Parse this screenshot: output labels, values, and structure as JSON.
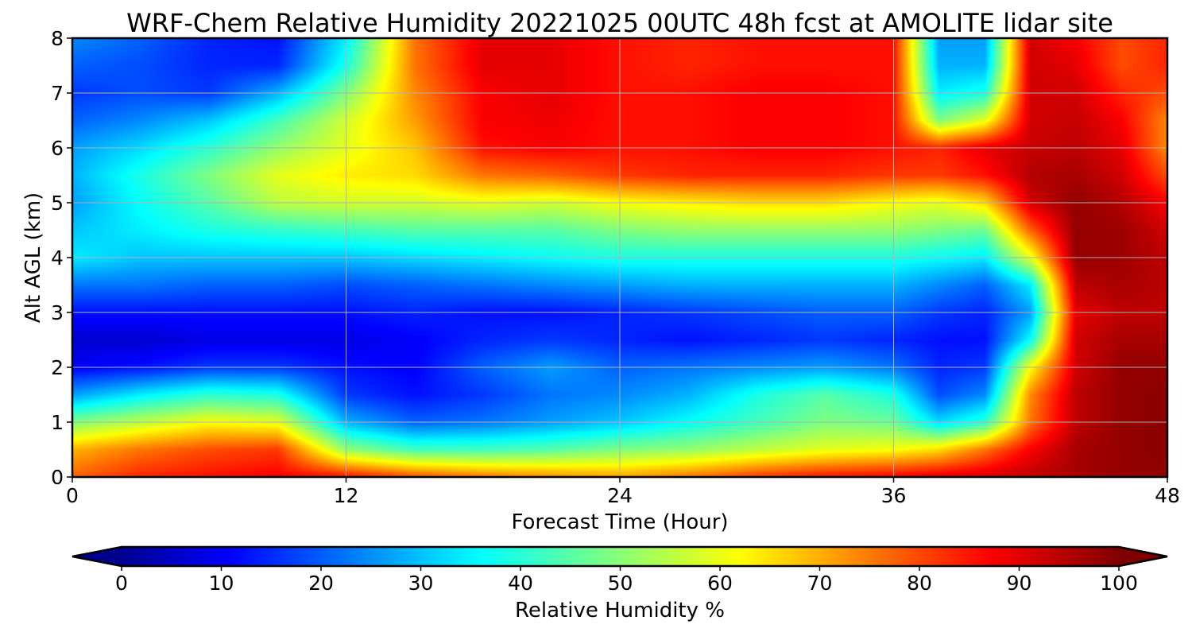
{
  "chart_data": {
    "type": "heatmap",
    "title": "WRF-Chem Relative Humidity 20221025 00UTC 48h fcst at AMOLITE lidar site",
    "xlabel": "Forecast Time (Hour)",
    "ylabel": "Alt AGL (km)",
    "xlim": [
      0,
      48
    ],
    "ylim": [
      0,
      8
    ],
    "xticks": [
      "0",
      "12",
      "24",
      "36",
      "48"
    ],
    "yticks": [
      "0",
      "1",
      "2",
      "3",
      "4",
      "5",
      "6",
      "7",
      "8"
    ],
    "grid": true,
    "colormap": "jet",
    "colorbar": {
      "label": "Relative Humidity %",
      "range": [
        0,
        100
      ],
      "ticks": [
        "0",
        "10",
        "20",
        "30",
        "40",
        "50",
        "60",
        "70",
        "80",
        "90",
        "100"
      ],
      "extend": "both",
      "orientation": "horizontal"
    },
    "x": [
      0,
      3,
      6,
      9,
      12,
      15,
      18,
      21,
      24,
      27,
      30,
      33,
      36,
      38,
      40,
      42,
      44,
      46,
      48
    ],
    "y": [
      0,
      0.5,
      1,
      1.5,
      2,
      2.5,
      3,
      3.5,
      4,
      4.5,
      5,
      5.5,
      6,
      6.5,
      7,
      7.5,
      8
    ],
    "z": [
      [
        78,
        84,
        86,
        88,
        86,
        80,
        76,
        74,
        72,
        76,
        82,
        86,
        88,
        90,
        92,
        94,
        96,
        98,
        98
      ],
      [
        70,
        76,
        80,
        82,
        52,
        44,
        44,
        46,
        50,
        52,
        56,
        60,
        62,
        66,
        76,
        88,
        96,
        98,
        99
      ],
      [
        50,
        56,
        62,
        60,
        30,
        22,
        24,
        28,
        32,
        38,
        44,
        50,
        48,
        34,
        42,
        76,
        94,
        98,
        99
      ],
      [
        28,
        36,
        42,
        40,
        18,
        14,
        18,
        24,
        26,
        30,
        40,
        46,
        40,
        20,
        26,
        74,
        94,
        98,
        99
      ],
      [
        12,
        14,
        18,
        18,
        14,
        12,
        22,
        28,
        22,
        24,
        26,
        28,
        24,
        16,
        18,
        62,
        92,
        98,
        98
      ],
      [
        8,
        8,
        10,
        10,
        10,
        12,
        16,
        18,
        16,
        14,
        16,
        18,
        16,
        14,
        14,
        38,
        92,
        96,
        96
      ],
      [
        14,
        14,
        14,
        14,
        14,
        16,
        14,
        14,
        16,
        18,
        20,
        22,
        22,
        18,
        16,
        28,
        90,
        94,
        94
      ],
      [
        24,
        24,
        22,
        22,
        20,
        22,
        24,
        26,
        28,
        30,
        30,
        30,
        30,
        26,
        22,
        36,
        94,
        96,
        94
      ],
      [
        36,
        32,
        32,
        32,
        32,
        34,
        36,
        38,
        40,
        40,
        40,
        40,
        40,
        38,
        36,
        60,
        98,
        97,
        94
      ],
      [
        32,
        36,
        40,
        42,
        44,
        46,
        46,
        46,
        50,
        52,
        52,
        52,
        52,
        50,
        48,
        78,
        98,
        97,
        92
      ],
      [
        28,
        38,
        46,
        56,
        58,
        58,
        60,
        58,
        62,
        64,
        66,
        66,
        62,
        60,
        66,
        92,
        98,
        95,
        88
      ],
      [
        30,
        40,
        50,
        60,
        64,
        66,
        76,
        78,
        82,
        84,
        84,
        84,
        82,
        82,
        86,
        95,
        96,
        92,
        80
      ],
      [
        28,
        34,
        42,
        52,
        60,
        68,
        86,
        88,
        86,
        86,
        88,
        88,
        86,
        84,
        90,
        93,
        94,
        90,
        74
      ],
      [
        22,
        26,
        32,
        44,
        58,
        72,
        88,
        89,
        86,
        86,
        88,
        88,
        86,
        50,
        60,
        92,
        93,
        88,
        74
      ],
      [
        18,
        20,
        18,
        30,
        50,
        74,
        88,
        90,
        86,
        86,
        88,
        88,
        86,
        36,
        40,
        92,
        92,
        84,
        80
      ],
      [
        22,
        20,
        16,
        16,
        40,
        76,
        90,
        90,
        86,
        84,
        86,
        86,
        86,
        30,
        30,
        92,
        90,
        80,
        84
      ],
      [
        26,
        22,
        16,
        14,
        36,
        76,
        90,
        90,
        86,
        84,
        86,
        86,
        86,
        28,
        28,
        92,
        88,
        80,
        84
      ]
    ]
  }
}
